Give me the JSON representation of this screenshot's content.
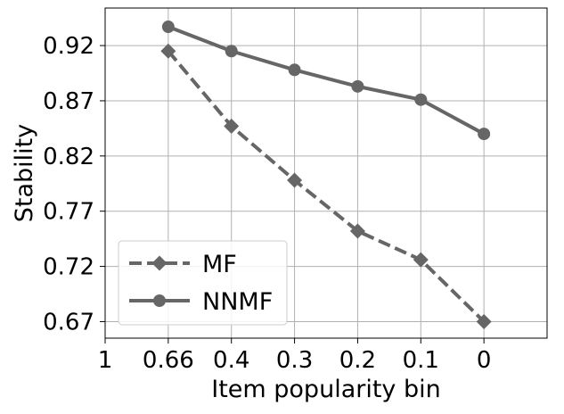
{
  "chart_data": {
    "type": "line",
    "title": "",
    "xlabel": "Item popularity bin",
    "ylabel": "Stability",
    "x_tick_labels": [
      "1",
      "0.66",
      "0.4",
      "0.3",
      "0.2",
      "0.1",
      "0"
    ],
    "x_points": [
      1,
      2,
      3,
      4,
      5,
      6
    ],
    "xlim": [
      0,
      7
    ],
    "ylim": [
      0.655,
      0.954
    ],
    "y_ticks": [
      0.67,
      0.72,
      0.77,
      0.82,
      0.87,
      0.92
    ],
    "y_tick_labels": [
      "0.67",
      "0.72",
      "0.77",
      "0.82",
      "0.87",
      "0.92"
    ],
    "grid": true,
    "legend_position": "lower-left",
    "series": [
      {
        "name": "MF",
        "values": [
          0.915,
          0.847,
          0.798,
          0.752,
          0.726,
          0.67
        ],
        "color": "#666666",
        "line_style": "dashed",
        "marker": "diamond"
      },
      {
        "name": "NNMF",
        "values": [
          0.937,
          0.915,
          0.898,
          0.883,
          0.871,
          0.84
        ],
        "color": "#666666",
        "line_style": "solid",
        "marker": "circle"
      }
    ]
  }
}
